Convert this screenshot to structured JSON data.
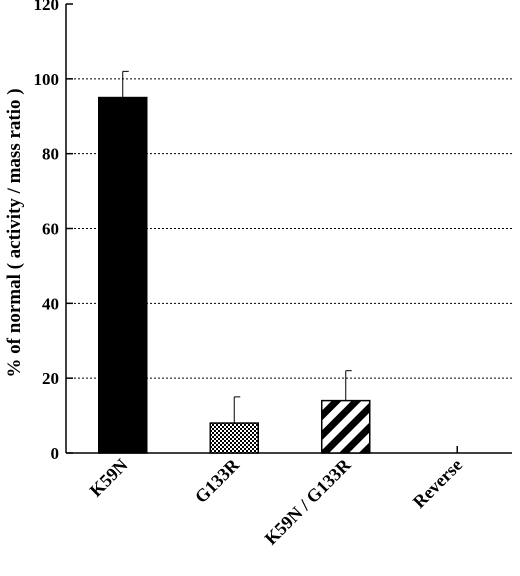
{
  "chart_data": {
    "type": "bar",
    "title": "",
    "xlabel": "",
    "ylabel": "% of normal ( activity / mass ratio )",
    "ylim": [
      0,
      120
    ],
    "yticks": [
      0,
      20,
      40,
      60,
      80,
      100,
      120
    ],
    "grid": "horizontal dotted",
    "categories": [
      "K59N",
      "G133R",
      "K59N / G133R",
      "Reverse"
    ],
    "values": [
      95,
      8,
      14,
      0
    ],
    "errors": [
      7,
      7,
      8,
      0
    ],
    "patterns": [
      "solid-black",
      "checkered",
      "diagonal-stripes",
      "none"
    ]
  }
}
